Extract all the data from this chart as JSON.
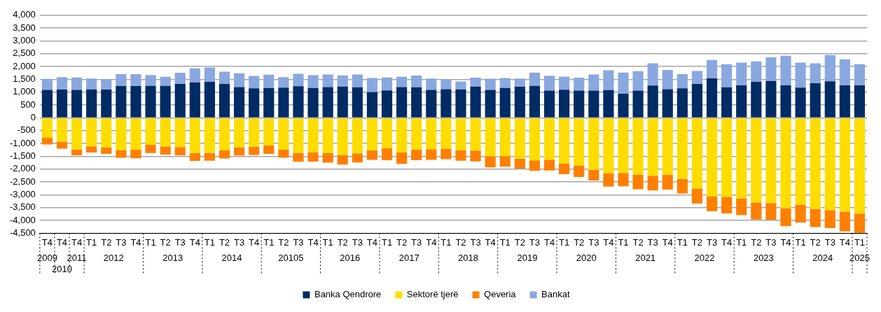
{
  "chart_data": {
    "type": "bar",
    "stacked": true,
    "grid": "y",
    "legend": "bottom",
    "categories": [
      "T4",
      "T4",
      "T4",
      "T1",
      "T2",
      "T3",
      "T4",
      "T1",
      "T2",
      "T3",
      "T4",
      "T1",
      "T2",
      "T3",
      "T4",
      "T1",
      "T2",
      "T3",
      "T4",
      "T1",
      "T2",
      "T3",
      "T4",
      "T1",
      "T2",
      "T3",
      "T4",
      "T1",
      "T2",
      "T3",
      "T4",
      "T1",
      "T2",
      "T3",
      "T4",
      "T1",
      "T2",
      "T3",
      "T4",
      "T1",
      "T2",
      "T3",
      "T4",
      "T1",
      "T2",
      "T3",
      "T4",
      "T1",
      "T2",
      "T3",
      "T4",
      "T1",
      "T2",
      "T3",
      "T4",
      "T1"
    ],
    "annotations": [
      "2009",
      "2010",
      "2011",
      "2012",
      "2013",
      "2014",
      "20105",
      "2016",
      "2017",
      "2018",
      "2019",
      "2020",
      "2021",
      "2022",
      "2023",
      "2024",
      "2025"
    ],
    "series": [
      {
        "name": "Banka Qendrore",
        "color": "#002b64",
        "values": [
          1090,
          1100,
          1090,
          1110,
          1100,
          1240,
          1240,
          1245,
          1245,
          1320,
          1380,
          1400,
          1320,
          1200,
          1150,
          1160,
          1175,
          1235,
          1165,
          1200,
          1220,
          1190,
          1000,
          1070,
          1200,
          1190,
          1090,
          1120,
          1110,
          1220,
          1090,
          1165,
          1210,
          1245,
          1060,
          1095,
          1060,
          1060,
          1080,
          940,
          1060,
          1260,
          1115,
          1150,
          1320,
          1540,
          1190,
          1270,
          1400,
          1435,
          1270,
          1175,
          1350,
          1425,
          1270,
          1270
        ]
      },
      {
        "name": "Sektorë tjerë",
        "color": "#ffdd00",
        "values": [
          -780,
          -940,
          -1230,
          -1110,
          -1160,
          -1270,
          -1245,
          -1045,
          -1115,
          -1140,
          -1365,
          -1365,
          -1270,
          -1155,
          -1130,
          -1080,
          -1235,
          -1365,
          -1340,
          -1365,
          -1445,
          -1385,
          -1260,
          -1190,
          -1350,
          -1235,
          -1225,
          -1200,
          -1260,
          -1280,
          -1505,
          -1495,
          -1590,
          -1660,
          -1635,
          -1785,
          -1870,
          -2035,
          -2160,
          -2150,
          -2220,
          -2260,
          -2220,
          -2385,
          -2760,
          -3070,
          -3080,
          -3150,
          -3305,
          -3325,
          -3530,
          -3385,
          -3550,
          -3595,
          -3655,
          -3730
        ]
      },
      {
        "name": "Qeveria",
        "color": "#ff7f00",
        "values": [
          -255,
          -260,
          -230,
          -245,
          -250,
          -285,
          -330,
          -330,
          -320,
          -320,
          -315,
          -305,
          -315,
          -315,
          -315,
          -330,
          -320,
          -350,
          -365,
          -385,
          -375,
          -355,
          -380,
          -460,
          -445,
          -420,
          -415,
          -410,
          -415,
          -420,
          -425,
          -410,
          -390,
          -410,
          -420,
          -410,
          -435,
          -410,
          -520,
          -515,
          -565,
          -575,
          -575,
          -565,
          -585,
          -575,
          -645,
          -645,
          -660,
          -645,
          -695,
          -705,
          -705,
          -705,
          -775,
          -755
        ]
      },
      {
        "name": "Bankat",
        "color": "#8aa8e0",
        "values": [
          430,
          490,
          485,
          420,
          415,
          460,
          465,
          425,
          355,
          440,
          550,
          565,
          480,
          540,
          485,
          520,
          415,
          480,
          495,
          490,
          435,
          500,
          550,
          505,
          400,
          460,
          445,
          375,
          305,
          350,
          435,
          385,
          320,
          520,
          585,
          515,
          505,
          630,
          775,
          825,
          760,
          865,
          755,
          555,
          505,
          715,
          905,
          880,
          800,
          930,
          1150,
          975,
          775,
          1020,
          1010,
          820
        ]
      }
    ],
    "ylim": [
      -4500,
      4000
    ],
    "yticks": [
      {
        "value": -4500,
        "label": "-4,500"
      },
      {
        "value": -4000,
        "label": "-4,000"
      },
      {
        "value": -3500,
        "label": "-3,500"
      },
      {
        "value": -3000,
        "label": "-3,000"
      },
      {
        "value": -2500,
        "label": "-2,500"
      },
      {
        "value": -2000,
        "label": "-2,000"
      },
      {
        "value": -1500,
        "label": "-1,500"
      },
      {
        "value": -1000,
        "label": "-1,000"
      },
      {
        "value": -500,
        "label": "-500"
      },
      {
        "value": 0,
        "label": "0"
      },
      {
        "value": 500,
        "label": "500"
      },
      {
        "value": 1000,
        "label": "1,000"
      },
      {
        "value": 1500,
        "label": "1,500"
      },
      {
        "value": 2000,
        "label": "2,000"
      },
      {
        "value": 2500,
        "label": "2,500"
      },
      {
        "value": 3000,
        "label": "3,000"
      },
      {
        "value": 3500,
        "label": "3,500"
      },
      {
        "value": 4000,
        "label": "4,000"
      }
    ]
  }
}
